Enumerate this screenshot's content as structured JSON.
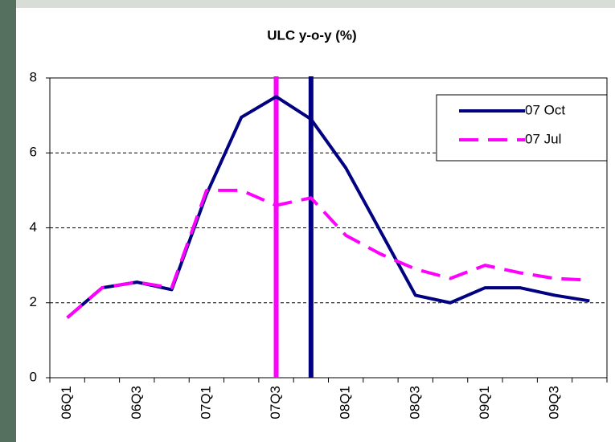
{
  "chart_data": {
    "type": "line",
    "title": "ULC y-o-y (%)",
    "categories": [
      "06Q1",
      null,
      "06Q3",
      null,
      "07Q1",
      null,
      "07Q3",
      null,
      "08Q1",
      null,
      "08Q3",
      null,
      "09Q1",
      null,
      "09Q3",
      null
    ],
    "series": [
      {
        "name": "07 Oct",
        "color": "#000080",
        "dash": false,
        "values": [
          1.6,
          2.4,
          2.55,
          2.35,
          4.9,
          6.95,
          7.5,
          6.9,
          5.6,
          3.9,
          2.2,
          2.0,
          2.4,
          2.4,
          2.2,
          2.05
        ]
      },
      {
        "name": "07 Jul",
        "color": "#ff00ff",
        "dash": true,
        "values": [
          1.6,
          2.4,
          2.55,
          2.4,
          5.0,
          5.0,
          4.6,
          4.8,
          3.8,
          3.3,
          2.9,
          2.65,
          3.0,
          2.8,
          2.65,
          2.6
        ]
      }
    ],
    "vertical_lines": [
      {
        "category_index": 6,
        "color": "#ff00ff"
      },
      {
        "category_index": 7,
        "color": "#000080"
      }
    ],
    "ylim": [
      0,
      8
    ],
    "yticks": [
      0,
      2,
      4,
      6,
      8
    ],
    "grid": true,
    "legend": "top-right"
  }
}
